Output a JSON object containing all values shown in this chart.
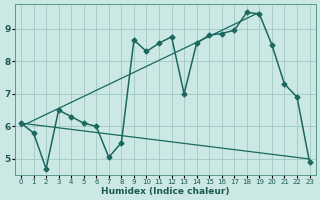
{
  "title": "",
  "xlabel": "Humidex (Indice chaleur)",
  "xlim": [
    -0.5,
    23.5
  ],
  "ylim": [
    4.5,
    9.75
  ],
  "xticks": [
    0,
    1,
    2,
    3,
    4,
    5,
    6,
    7,
    8,
    9,
    10,
    11,
    12,
    13,
    14,
    15,
    16,
    17,
    18,
    19,
    20,
    21,
    22,
    23
  ],
  "yticks": [
    5,
    6,
    7,
    8,
    9
  ],
  "bg_color": "#cce8e4",
  "grid_color": "#a0c8c4",
  "line_color": "#1a6860",
  "series": [
    {
      "x": [
        0,
        1,
        2,
        3,
        4,
        5,
        6,
        7,
        8,
        9,
        10,
        11,
        12,
        13,
        14,
        15,
        16,
        17,
        18,
        19,
        20,
        21,
        22,
        23
      ],
      "y": [
        6.1,
        5.8,
        4.7,
        6.5,
        6.3,
        6.1,
        6.0,
        5.05,
        5.5,
        8.65,
        8.3,
        8.55,
        8.75,
        7.0,
        8.55,
        8.8,
        8.85,
        8.95,
        9.5,
        9.45,
        8.5,
        7.3,
        6.9,
        4.9
      ],
      "with_markers": true,
      "marker": "D",
      "markersize": 2.5,
      "linewidth": 1.1
    },
    {
      "x": [
        0,
        19
      ],
      "y": [
        6.0,
        9.5
      ],
      "with_markers": false,
      "markersize": 0,
      "linewidth": 0.9
    },
    {
      "x": [
        0,
        23
      ],
      "y": [
        6.1,
        5.0
      ],
      "with_markers": false,
      "markersize": 0,
      "linewidth": 0.9
    }
  ]
}
